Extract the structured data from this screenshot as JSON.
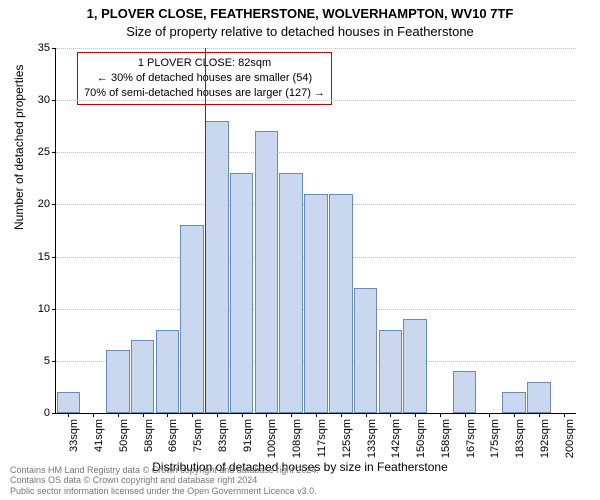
{
  "title": "1, PLOVER CLOSE, FEATHERSTONE, WOLVERHAMPTON, WV10 7TF",
  "subtitle": "Size of property relative to detached houses in Featherstone",
  "ylabel": "Number of detached properties",
  "xlabel": "Distribution of detached houses by size in Featherstone",
  "footer_line1": "Contains HM Land Registry data © Crown copyright and database right 2024.",
  "footer_line2": "Contains OS data © Crown copyright and database right 2024",
  "footer_line3": "Public sector information licensed under the Open Government Licence v3.0.",
  "chart": {
    "type": "histogram",
    "background_color": "#ffffff",
    "grid_color": "#c0c0c0",
    "axis_color": "#000000",
    "bar_fill": "#c9d8ef",
    "bar_border": "#6a89bd",
    "refline_color": "#cc0000",
    "ylim": [
      0,
      35
    ],
    "ytick_step": 5,
    "tick_fontsize": 11,
    "label_fontsize": 12,
    "title_fontsize": 13,
    "bar_width_rel": 0.95,
    "categories": [
      "33sqm",
      "41sqm",
      "50sqm",
      "58sqm",
      "66sqm",
      "75sqm",
      "83sqm",
      "91sqm",
      "100sqm",
      "108sqm",
      "117sqm",
      "125sqm",
      "133sqm",
      "142sqm",
      "150sqm",
      "158sqm",
      "167sqm",
      "175sqm",
      "183sqm",
      "192sqm",
      "200sqm"
    ],
    "values": [
      2,
      0,
      6,
      7,
      8,
      18,
      28,
      23,
      27,
      23,
      21,
      21,
      12,
      8,
      9,
      0,
      4,
      0,
      2,
      3,
      0
    ],
    "reference_index": 6,
    "annotation": {
      "line1": "1 PLOVER CLOSE: 82sqm",
      "line2": "← 30% of detached houses are smaller (54)",
      "line3": "70% of semi-detached houses are larger (127) →"
    }
  }
}
